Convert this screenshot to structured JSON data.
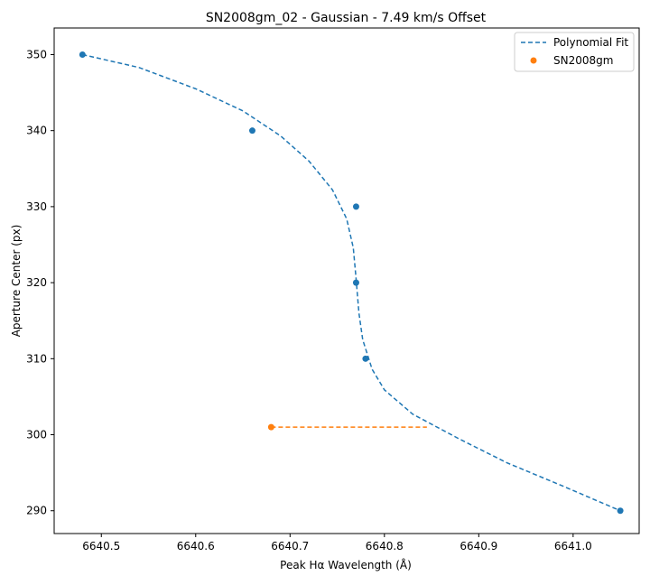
{
  "chart_data": {
    "type": "scatter",
    "title": "SN2008gm_02 - Gaussian - 7.49 km/s Offset",
    "xlabel": "Peak Hα Wavelength (Å)",
    "ylabel": "Aperture Center (px)",
    "xlim": [
      6640.45,
      6641.07
    ],
    "ylim": [
      287,
      353.5
    ],
    "xticks": [
      6640.5,
      6640.6,
      6640.7,
      6640.8,
      6640.9,
      6641.0
    ],
    "xtick_labels": [
      "6640.5",
      "6640.6",
      "6640.7",
      "6640.8",
      "6640.9",
      "6641.0"
    ],
    "yticks": [
      290,
      300,
      310,
      320,
      330,
      340,
      350
    ],
    "ytick_labels": [
      "290",
      "300",
      "310",
      "320",
      "330",
      "340",
      "350"
    ],
    "grid": false,
    "legend_position": "top-right",
    "series": [
      {
        "name": "Polynomial Fit",
        "kind": "line",
        "style": "dashed",
        "color": "#1f77b4",
        "points": [
          [
            6640.48,
            350
          ],
          [
            6640.54,
            348.3
          ],
          [
            6640.6,
            345.5
          ],
          [
            6640.65,
            342.6
          ],
          [
            6640.69,
            339.3
          ],
          [
            6640.72,
            336.0
          ],
          [
            6640.745,
            332.2
          ],
          [
            6640.76,
            328.4
          ],
          [
            6640.767,
            324.6
          ],
          [
            6640.77,
            320.5
          ],
          [
            6640.773,
            316.0
          ],
          [
            6640.777,
            312.5
          ],
          [
            6640.787,
            308.6
          ],
          [
            6640.8,
            305.9
          ],
          [
            6640.83,
            302.7
          ],
          [
            6640.88,
            299.4
          ],
          [
            6640.93,
            296.3
          ],
          [
            6640.99,
            293.2
          ],
          [
            6641.05,
            290
          ]
        ]
      },
      {
        "name": "",
        "kind": "scatter",
        "color": "#1f77b4",
        "points": [
          [
            6640.48,
            350
          ],
          [
            6640.66,
            340
          ],
          [
            6640.77,
            330
          ],
          [
            6640.77,
            320
          ],
          [
            6640.78,
            310
          ],
          [
            6641.05,
            290
          ]
        ]
      },
      {
        "name": "SN2008gm",
        "kind": "scatter",
        "color": "#ff7f0e",
        "points": [
          [
            6640.68,
            301
          ]
        ]
      },
      {
        "name": "",
        "kind": "line",
        "style": "dashed",
        "color": "#ff7f0e",
        "points": [
          [
            6640.68,
            301
          ],
          [
            6640.845,
            301
          ]
        ]
      }
    ]
  }
}
